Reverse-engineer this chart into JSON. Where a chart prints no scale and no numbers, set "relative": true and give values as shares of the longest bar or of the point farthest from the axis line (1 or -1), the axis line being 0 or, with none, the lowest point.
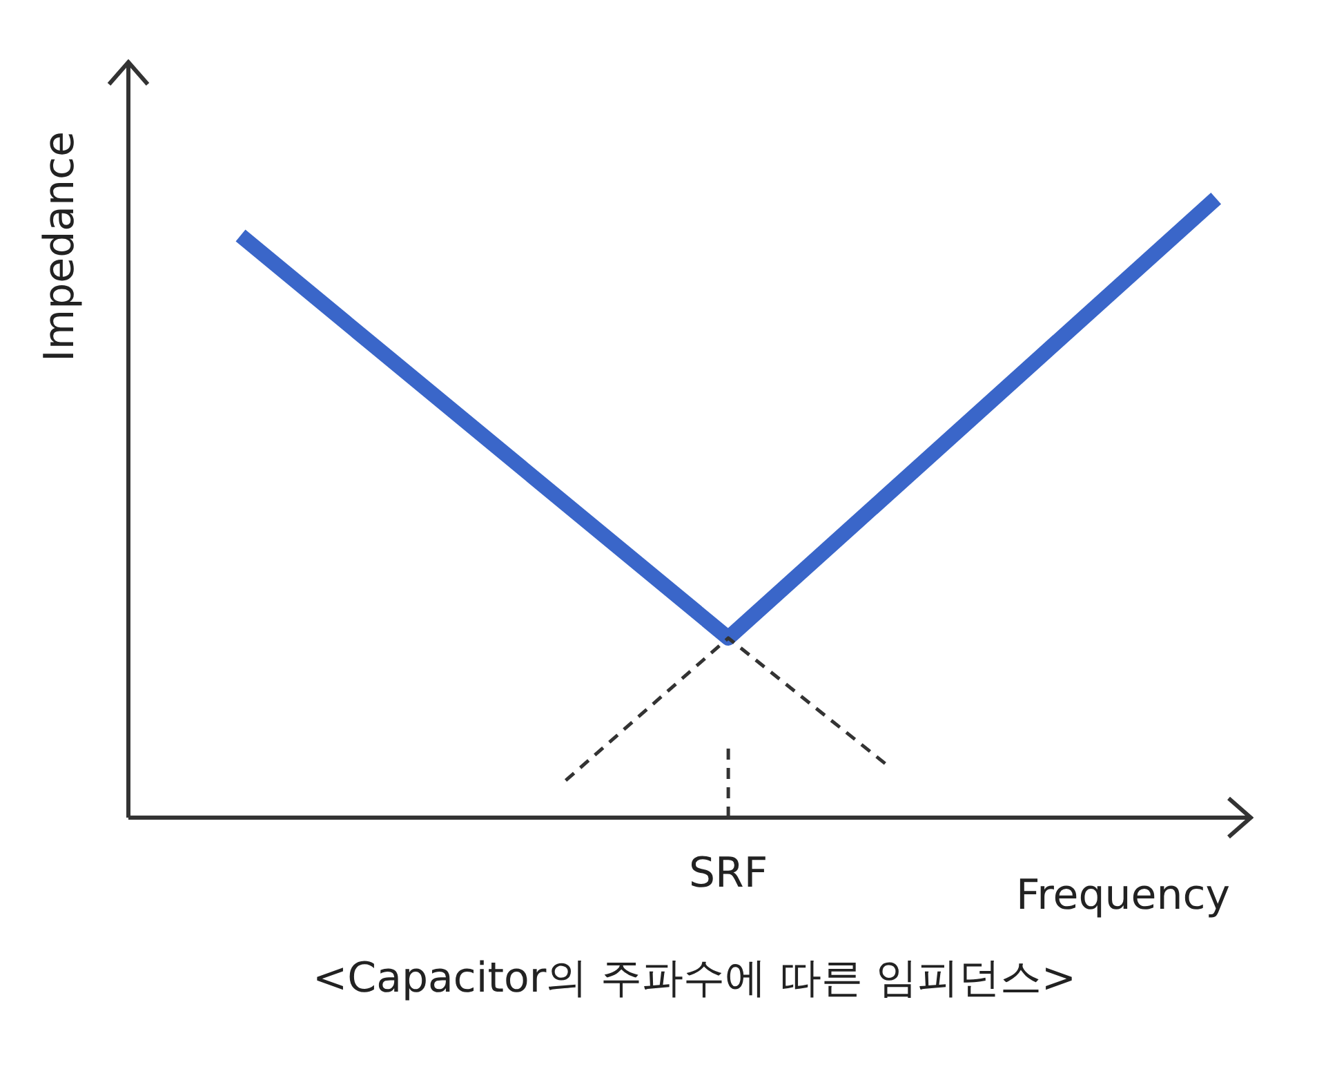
{
  "chart_data": {
    "type": "line",
    "title": "<Capacitor의 주파수에 따른 임피던스>",
    "xlabel": "Frequency",
    "ylabel": "Impedance",
    "relative": true,
    "marker": "none",
    "annotations": [
      "SRF"
    ],
    "categories": [
      null,
      null,
      null,
      null,
      null,
      null,
      null,
      null,
      null,
      null,
      null,
      null,
      null
    ],
    "series": [
      {
        "color": "#3a66c9",
        "values": [
          0.94,
          null,
          null,
          null,
          null,
          null,
          0.29,
          null,
          null,
          null,
          null,
          null,
          1
        ],
        "line_style": "solid"
      },
      {
        "color": "#333333",
        "values": [
          null,
          null,
          null,
          null,
          0.06,
          null,
          0.29,
          null,
          0.08,
          null,
          null,
          null,
          null
        ],
        "line_style": "dashed"
      }
    ]
  }
}
